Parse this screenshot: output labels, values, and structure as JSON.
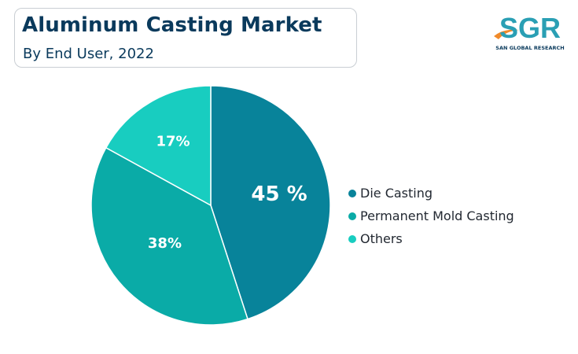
{
  "header": {
    "title": "Aluminum Casting Market",
    "subtitle": "By End User, 2022"
  },
  "logo": {
    "text": "SGR",
    "tagline": "SAN GLOBAL RESEARCH"
  },
  "chart_data": {
    "type": "pie",
    "title": "Aluminum Casting Market",
    "subtitle": "By End User, 2022",
    "legend_position": "right",
    "slices": [
      {
        "name": "Die Casting",
        "value": 45,
        "label": "45 %",
        "color": "#08839a"
      },
      {
        "name": "Permanent Mold Casting",
        "value": 38,
        "label": "38%",
        "color": "#0aaba7"
      },
      {
        "name": "Others",
        "value": 17,
        "label": "17%",
        "color": "#18cdc0"
      }
    ]
  }
}
